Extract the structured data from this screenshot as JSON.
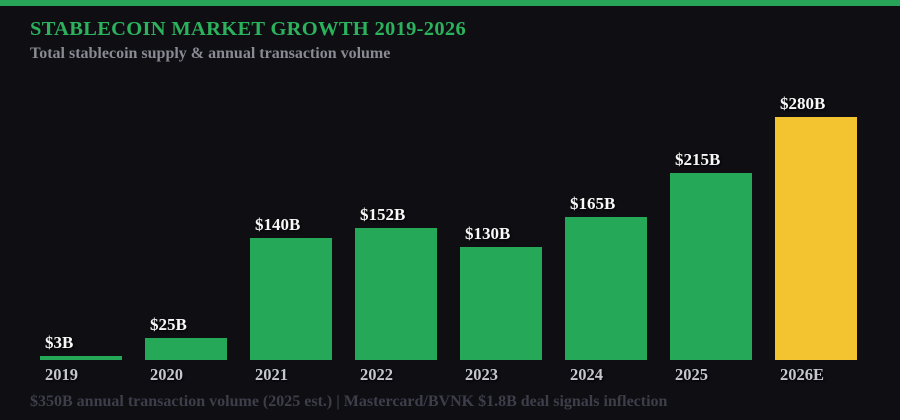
{
  "page": {
    "background": "#0e0e13",
    "accent_strip_color": "#27a458"
  },
  "chart_data": {
    "type": "bar",
    "title": "STABLECOIN MARKET GROWTH 2019-2026",
    "subtitle": "Total stablecoin supply & annual transaction volume",
    "footnote": "$350B annual transaction volume (2025 est.) | Mastercard/BVNK $1.8B deal signals inflection",
    "unit": "$B",
    "categories": [
      "2019",
      "2020",
      "2021",
      "2022",
      "2023",
      "2024",
      "2025",
      "2026E"
    ],
    "values": [
      3,
      25,
      140,
      152,
      130,
      165,
      215,
      280
    ],
    "value_labels": [
      "$3B",
      "$25B",
      "$140B",
      "$152B",
      "$130B",
      "$165B",
      "$215B",
      "$280B"
    ],
    "ylim": [
      0,
      280
    ],
    "grid": false,
    "legend": false,
    "bar_color": "#25a857",
    "highlight_bar_color": "#f3c430",
    "highlight_index": 7,
    "highlight_category": "2026E",
    "colors": {
      "title": "#2cb25c",
      "subtitle": "#8a8a94",
      "value_label": "#f8f8f8",
      "category_label": "#c6c6d0",
      "footnote": "#3e3e4a"
    }
  }
}
